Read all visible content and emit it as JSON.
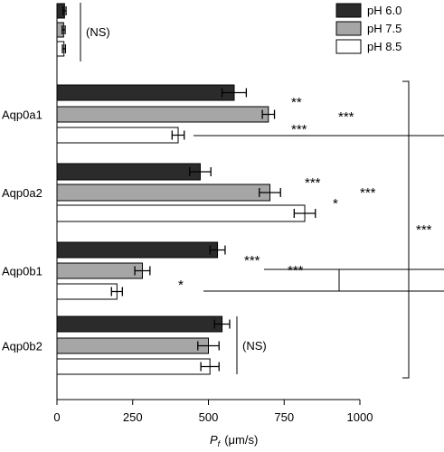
{
  "chart_data": {
    "type": "bar",
    "orientation": "horizontal",
    "xlabel": {
      "symbol": "P",
      "subscript": "f",
      "units": "(μm/s)"
    },
    "xlim": [
      0,
      1000
    ],
    "x_ticks": [
      0,
      250,
      500,
      750,
      1000
    ],
    "series": [
      {
        "name": "pH 6.0",
        "color": "#2b2b2b"
      },
      {
        "name": "pH 7.5",
        "color": "#a6a6a6"
      },
      {
        "name": "pH 8.5",
        "color": "#ffffff"
      }
    ],
    "groups": [
      {
        "label": "",
        "values": [
          25,
          22,
          23
        ],
        "errors": [
          5,
          5,
          5
        ],
        "annotation": "(NS)"
      },
      {
        "label": "Aqp0a1",
        "values": [
          585,
          698,
          400
        ],
        "errors": [
          40,
          20,
          20
        ]
      },
      {
        "label": "Aqp0a2",
        "values": [
          473,
          703,
          818
        ],
        "errors": [
          35,
          35,
          35
        ]
      },
      {
        "label": "Aqp0b1",
        "values": [
          530,
          282,
          198
        ],
        "errors": [
          25,
          25,
          18
        ]
      },
      {
        "label": "Aqp0b2",
        "values": [
          545,
          500,
          505
        ],
        "errors": [
          25,
          35,
          30
        ],
        "annotation": "(NS)"
      }
    ],
    "significance": {
      "aqp0a1": [
        "**",
        "***",
        "***"
      ],
      "aqp0a2": [
        "***",
        "*",
        "***"
      ],
      "aqp0b1": [
        "***",
        "*",
        "***"
      ],
      "overall": "***"
    }
  }
}
